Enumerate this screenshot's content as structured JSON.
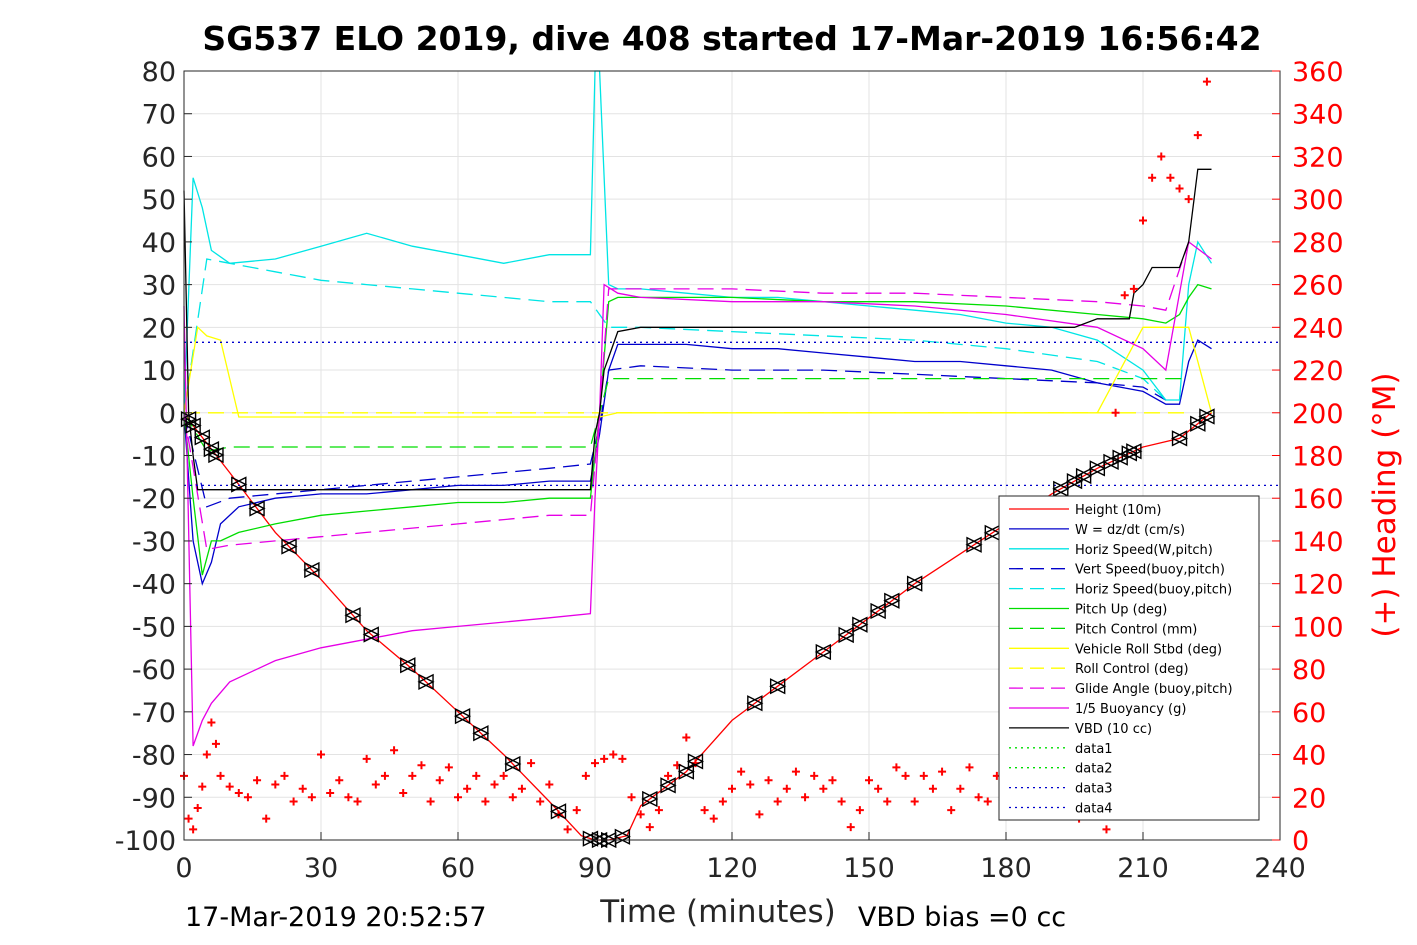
{
  "chart_data": {
    "type": "line",
    "title": "SG537 ELO 2019, dive 408 started 17-Mar-2019 16:56:42",
    "xlabel": "Time (minutes)",
    "ylabel": "",
    "ylabel_right": "(+) Heading (°M)",
    "xlim": [
      0,
      240
    ],
    "ylim": [
      -100,
      80
    ],
    "ylim_right": [
      0,
      360
    ],
    "xticks": [
      0,
      30,
      60,
      90,
      120,
      150,
      180,
      210,
      240
    ],
    "yticks": [
      -100,
      -90,
      -80,
      -70,
      -60,
      -50,
      -40,
      -30,
      -20,
      -10,
      0,
      10,
      20,
      30,
      40,
      50,
      60,
      70,
      80
    ],
    "yticks_right": [
      0,
      20,
      40,
      60,
      80,
      100,
      120,
      140,
      160,
      180,
      200,
      220,
      240,
      260,
      280,
      300,
      320,
      340,
      360
    ],
    "grid": true,
    "legend_position": "lower-right",
    "footer_left": "17-Mar-2019 20:52:57",
    "footer_right": "VBD bias =0 cc",
    "series": [
      {
        "name": "Height (10m)",
        "color": "#ff0000",
        "style": "solid",
        "x": [
          0,
          2,
          10,
          20,
          30,
          40,
          50,
          60,
          70,
          80,
          87,
          90,
          93,
          97,
          100,
          110,
          120,
          130,
          140,
          150,
          160,
          170,
          180,
          190,
          200,
          210,
          218,
          225
        ],
        "y": [
          0,
          -3,
          -14,
          -28,
          -39,
          -51,
          -60,
          -70,
          -80,
          -91,
          -99,
          -100,
          -100,
          -99,
          -92,
          -84,
          -72,
          -64,
          -56,
          -48,
          -40,
          -33,
          -26,
          -19,
          -13,
          -8,
          -6,
          0
        ]
      },
      {
        "name": "W = dz/dt (cm/s)",
        "color": "#0000cc",
        "style": "solid",
        "x": [
          0,
          2,
          4,
          6,
          8,
          12,
          20,
          30,
          40,
          50,
          60,
          70,
          80,
          89,
          91,
          93,
          95,
          100,
          110,
          120,
          130,
          140,
          150,
          160,
          170,
          180,
          190,
          200,
          210,
          215,
          218,
          220,
          222,
          225
        ],
        "y": [
          0,
          -30,
          -40,
          -35,
          -26,
          -22,
          -20,
          -19,
          -19,
          -18,
          -17,
          -17,
          -16,
          -16,
          -5,
          10,
          16,
          16,
          16,
          15,
          15,
          14,
          13,
          12,
          12,
          11,
          10,
          7,
          5,
          2,
          2,
          12,
          17,
          15
        ]
      },
      {
        "name": "Horiz Speed(W,pitch)",
        "color": "#00e5e5",
        "style": "solid",
        "x": [
          0,
          2,
          4,
          6,
          10,
          20,
          30,
          40,
          50,
          60,
          70,
          80,
          89,
          90,
          91,
          93,
          95,
          100,
          110,
          120,
          130,
          140,
          150,
          160,
          170,
          180,
          190,
          200,
          210,
          215,
          218,
          220,
          222,
          225
        ],
        "y": [
          0,
          55,
          48,
          38,
          35,
          36,
          39,
          42,
          39,
          37,
          35,
          37,
          37,
          80,
          80,
          30,
          29,
          29,
          28,
          27,
          27,
          26,
          25,
          24,
          23,
          21,
          20,
          17,
          10,
          3,
          3,
          30,
          40,
          35
        ]
      },
      {
        "name": "Vert Speed(buoy,pitch)",
        "color": "#0000cc",
        "style": "dashed",
        "x": [
          0,
          5,
          10,
          20,
          30,
          40,
          50,
          60,
          70,
          80,
          89,
          91,
          93,
          100,
          120,
          140,
          160,
          180,
          200,
          210,
          215
        ],
        "y": [
          0,
          -22,
          -20,
          -19,
          -18,
          -17,
          -16,
          -15,
          -14,
          -13,
          -12,
          -3,
          10,
          11,
          10,
          10,
          9,
          8,
          7,
          6,
          3
        ]
      },
      {
        "name": "Horiz Speed(buoy,pitch)",
        "color": "#00e5e5",
        "style": "dashed",
        "x": [
          0,
          5,
          10,
          20,
          30,
          40,
          50,
          60,
          70,
          80,
          89,
          93,
          100,
          120,
          140,
          160,
          180,
          200,
          210,
          215
        ],
        "y": [
          0,
          36,
          35,
          33,
          31,
          30,
          29,
          28,
          27,
          26,
          26,
          20,
          20,
          19,
          18,
          17,
          15,
          12,
          8,
          3
        ]
      },
      {
        "name": "Pitch Up (deg)",
        "color": "#00dd00",
        "style": "solid",
        "x": [
          0,
          2,
          4,
          6,
          8,
          12,
          20,
          30,
          40,
          50,
          60,
          70,
          80,
          89,
          91,
          93,
          95,
          100,
          120,
          140,
          160,
          180,
          200,
          210,
          215,
          218,
          220,
          222,
          225
        ],
        "y": [
          0,
          -20,
          -38,
          -30,
          -30,
          -28,
          -26,
          -24,
          -23,
          -22,
          -21,
          -21,
          -20,
          -20,
          0,
          26,
          27,
          27,
          27,
          26,
          26,
          25,
          23,
          22,
          21,
          23,
          27,
          30,
          29
        ]
      },
      {
        "name": "Pitch Control (mm)",
        "color": "#00dd00",
        "style": "dashed",
        "x": [
          0,
          5,
          10,
          20,
          30,
          40,
          50,
          60,
          70,
          80,
          89,
          91,
          93,
          100,
          120,
          140,
          160,
          180,
          200,
          210,
          215,
          220
        ],
        "y": [
          0,
          -9,
          -8,
          -8,
          -8,
          -8,
          -8,
          -8,
          -8,
          -8,
          -8,
          0,
          8,
          8,
          8,
          8,
          8,
          8,
          8,
          8,
          8,
          8
        ]
      },
      {
        "name": "Vehicle Roll Stbd (deg)",
        "color": "#ffff00",
        "style": "solid",
        "x": [
          0,
          3,
          5,
          8,
          12,
          20,
          30,
          40,
          50,
          60,
          70,
          80,
          89,
          91,
          95,
          100,
          120,
          140,
          160,
          180,
          200,
          210,
          220,
          225
        ],
        "y": [
          0,
          20,
          18,
          17,
          -1,
          -1,
          -1,
          -1,
          -1,
          -1,
          -1,
          -1,
          -1,
          -1,
          0,
          0,
          0,
          0,
          0,
          0,
          0,
          20,
          20,
          0
        ]
      },
      {
        "name": "Roll Control (deg)",
        "color": "#ffff00",
        "style": "dashed",
        "x": [
          0,
          5,
          10,
          20,
          30,
          40,
          50,
          60,
          70,
          80,
          89,
          91,
          95,
          100,
          120,
          140,
          160,
          180,
          200,
          210,
          220
        ],
        "y": [
          0,
          0,
          0,
          0,
          0,
          0,
          0,
          0,
          0,
          0,
          0,
          0,
          0,
          0,
          0,
          0,
          0,
          0,
          0,
          0,
          0
        ]
      },
      {
        "name": "Glide Angle (buoy,pitch)",
        "color": "#e600e6",
        "style": "dashed",
        "x": [
          0,
          5,
          10,
          20,
          30,
          40,
          50,
          60,
          70,
          80,
          89,
          91,
          93,
          100,
          120,
          140,
          160,
          180,
          200,
          210,
          215,
          220
        ],
        "y": [
          0,
          -32,
          -31,
          -30,
          -29,
          -28,
          -27,
          -26,
          -25,
          -24,
          -24,
          0,
          29,
          29,
          29,
          28,
          28,
          27,
          26,
          25,
          24,
          40
        ]
      },
      {
        "name": "1/5 Buoyancy (g)",
        "color": "#e600e6",
        "style": "solid",
        "x": [
          0,
          2,
          4,
          6,
          10,
          20,
          30,
          40,
          50,
          60,
          70,
          80,
          89,
          90,
          91,
          92,
          95,
          100,
          120,
          140,
          160,
          180,
          200,
          210,
          215,
          220,
          225
        ],
        "y": [
          25,
          -78,
          -72,
          -68,
          -63,
          -58,
          -55,
          -53,
          -51,
          -50,
          -49,
          -48,
          -47,
          -20,
          0,
          30,
          28,
          27,
          26,
          26,
          25,
          23,
          20,
          15,
          10,
          40,
          36
        ]
      },
      {
        "name": "VBD (10 cc)",
        "color": "#000000",
        "style": "solid",
        "x": [
          0,
          1,
          2,
          3,
          4,
          10,
          20,
          40,
          60,
          80,
          89,
          90,
          91,
          92,
          95,
          100,
          120,
          140,
          160,
          180,
          195,
          200,
          207,
          208,
          210,
          212,
          218,
          220,
          222,
          225
        ],
        "y": [
          52,
          0,
          -10,
          -18,
          -18,
          -18,
          -18,
          -18,
          -18,
          -18,
          -18,
          -5,
          0,
          10,
          19,
          20,
          20,
          20,
          20,
          20,
          20,
          22,
          22,
          28,
          30,
          34,
          34,
          40,
          57,
          57
        ]
      },
      {
        "name": "data1",
        "color": "#00dd00",
        "style": "dotted",
        "x": [],
        "y": []
      },
      {
        "name": "data2",
        "color": "#00dd00",
        "style": "dotted",
        "x": [],
        "y": []
      },
      {
        "name": "data3",
        "color": "#0000cc",
        "style": "dotted",
        "x": [
          0,
          240
        ],
        "y": [
          16.5,
          16.5
        ]
      },
      {
        "name": "data4",
        "color": "#0000cc",
        "style": "dotted",
        "x": [
          0,
          240
        ],
        "y": [
          -17,
          -17
        ]
      }
    ],
    "heading_right_axis": {
      "color": "#ff0000",
      "marker": "+",
      "x": [
        0,
        1,
        2,
        3,
        4,
        5,
        6,
        7,
        8,
        10,
        12,
        14,
        16,
        18,
        20,
        22,
        24,
        26,
        28,
        30,
        32,
        34,
        36,
        38,
        40,
        42,
        44,
        46,
        48,
        50,
        52,
        54,
        56,
        58,
        60,
        62,
        64,
        66,
        68,
        70,
        72,
        74,
        76,
        78,
        80,
        82,
        84,
        86,
        88,
        90,
        92,
        94,
        96,
        98,
        100,
        102,
        104,
        106,
        108,
        110,
        112,
        114,
        116,
        118,
        120,
        122,
        124,
        126,
        128,
        130,
        132,
        134,
        136,
        138,
        140,
        142,
        144,
        146,
        148,
        150,
        152,
        154,
        156,
        158,
        160,
        162,
        164,
        166,
        168,
        170,
        172,
        174,
        176,
        178,
        180,
        182,
        184,
        186,
        188,
        190,
        192,
        194,
        196,
        198,
        200,
        202,
        204,
        206,
        208,
        210,
        212,
        214,
        216,
        218,
        220,
        222,
        224
      ],
      "y": [
        30,
        10,
        5,
        15,
        25,
        40,
        55,
        45,
        30,
        25,
        22,
        20,
        28,
        10,
        26,
        30,
        18,
        24,
        20,
        40,
        22,
        28,
        20,
        18,
        38,
        26,
        30,
        42,
        22,
        30,
        35,
        18,
        28,
        34,
        20,
        24,
        30,
        18,
        26,
        30,
        20,
        24,
        36,
        18,
        26,
        12,
        5,
        14,
        30,
        36,
        38,
        40,
        38,
        20,
        12,
        6,
        14,
        30,
        35,
        48,
        36,
        14,
        10,
        18,
        24,
        32,
        26,
        12,
        28,
        18,
        24,
        32,
        20,
        30,
        24,
        28,
        18,
        6,
        14,
        28,
        24,
        18,
        34,
        30,
        18,
        30,
        24,
        32,
        14,
        24,
        34,
        20,
        18,
        30,
        26,
        28,
        20,
        24,
        30,
        18,
        28,
        24,
        10,
        20,
        24,
        5,
        200,
        255,
        258,
        290,
        310,
        320,
        310,
        305,
        300,
        330,
        355
      ]
    },
    "depth_markers": {
      "marker": "triangle-pairs",
      "color": "#000000",
      "x": [
        1,
        2,
        4,
        6,
        7,
        12,
        16,
        23,
        28,
        37,
        41,
        49,
        53,
        61,
        65,
        72,
        82,
        89,
        91,
        93,
        96,
        102,
        106,
        110,
        112,
        125,
        130,
        140,
        145,
        148,
        152,
        155,
        160,
        173,
        177,
        192,
        195,
        197,
        200,
        203,
        205,
        207,
        208,
        218,
        222,
        224
      ]
    }
  }
}
